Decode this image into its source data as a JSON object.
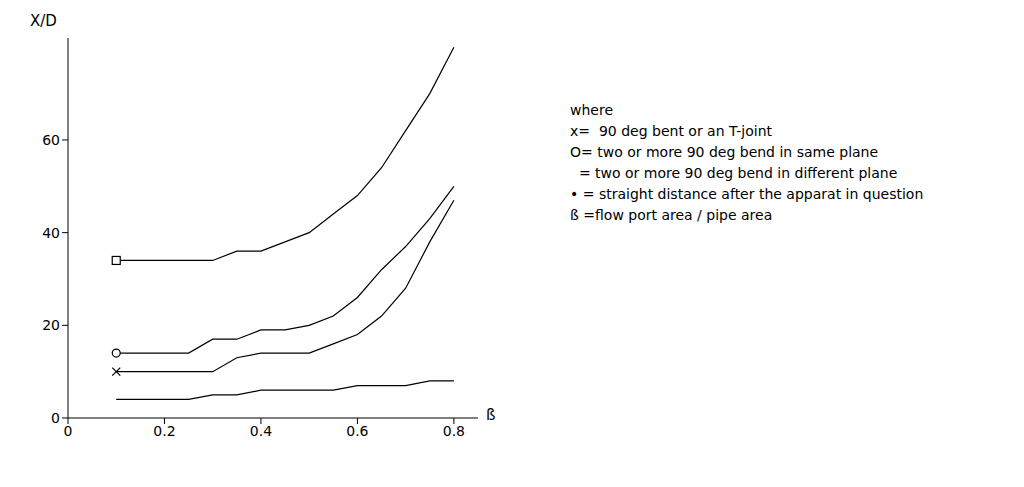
{
  "chart_data": {
    "type": "line",
    "xlabel": "ß",
    "ylabel": "X/D",
    "xlim": [
      0,
      0.85
    ],
    "xticks": [
      0,
      0.2,
      0.4,
      0.6,
      0.8
    ],
    "ylim": [
      0,
      82
    ],
    "yticks": [
      0,
      20,
      40,
      60
    ],
    "grid": false,
    "series": [
      {
        "color": "#000000",
        "marker": "square",
        "x": [
          0.1,
          0.3,
          0.35,
          0.4,
          0.5,
          0.55,
          0.6,
          0.65,
          0.7,
          0.75,
          0.8
        ],
        "values": [
          34,
          34,
          36,
          36,
          40,
          44,
          48,
          54,
          62,
          70,
          80
        ]
      },
      {
        "color": "#000000",
        "marker": "circle",
        "x": [
          0.1,
          0.25,
          0.3,
          0.35,
          0.4,
          0.45,
          0.5,
          0.55,
          0.6,
          0.65,
          0.7,
          0.75,
          0.8
        ],
        "values": [
          14,
          14,
          17,
          17,
          19,
          19,
          20,
          22,
          26,
          32,
          37,
          43,
          50
        ]
      },
      {
        "color": "#000000",
        "marker": "x",
        "x": [
          0.1,
          0.3,
          0.35,
          0.4,
          0.5,
          0.55,
          0.6,
          0.65,
          0.7,
          0.75,
          0.8
        ],
        "values": [
          10,
          10,
          13,
          14,
          14,
          16,
          18,
          22,
          28,
          38,
          47
        ]
      },
      {
        "color": "#000000",
        "marker": "none",
        "x": [
          0.1,
          0.25,
          0.3,
          0.35,
          0.4,
          0.55,
          0.6,
          0.7,
          0.75,
          0.8
        ],
        "values": [
          4,
          4,
          5,
          5,
          6,
          6,
          7,
          7,
          8,
          8
        ]
      }
    ],
    "annotations": [
      "where",
      "x=  90 deg bent or an T-joint",
      "O= two or more 90 deg bend in same plane",
      "  = two or more 90 deg bend in different plane",
      "• = straight distance after the apparat in question",
      "ß =flow port area / pipe area"
    ]
  }
}
